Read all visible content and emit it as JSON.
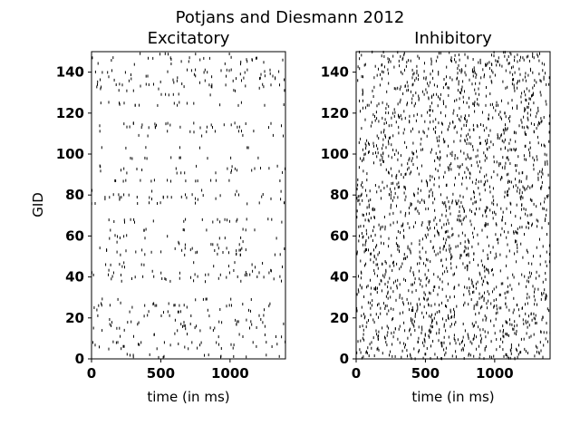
{
  "figure": {
    "suptitle": "Potjans and Diesmann 2012"
  },
  "chart_data": [
    {
      "type": "scatter",
      "marker": "tick",
      "title": "Excitatory",
      "xlabel": "time (in ms)",
      "ylabel": "GID",
      "xlim": [
        0,
        1400
      ],
      "ylim": [
        0,
        150
      ],
      "xticks": [
        "0",
        "500",
        "1000"
      ],
      "yticks": [
        "0",
        "20",
        "40",
        "60",
        "80",
        "100",
        "120",
        "140"
      ],
      "seed": 7,
      "n_spikes": 620,
      "grid": false
    },
    {
      "type": "scatter",
      "marker": "tick",
      "title": "Inhibitory",
      "xlabel": "time (in ms)",
      "ylabel": "",
      "xlim": [
        0,
        1400
      ],
      "ylim": [
        0,
        150
      ],
      "xticks": [
        "0",
        "500",
        "1000"
      ],
      "yticks": [
        "0",
        "20",
        "40",
        "60",
        "80",
        "100",
        "120",
        "140"
      ],
      "seed": 13,
      "n_spikes": 2100,
      "grid": false
    }
  ]
}
